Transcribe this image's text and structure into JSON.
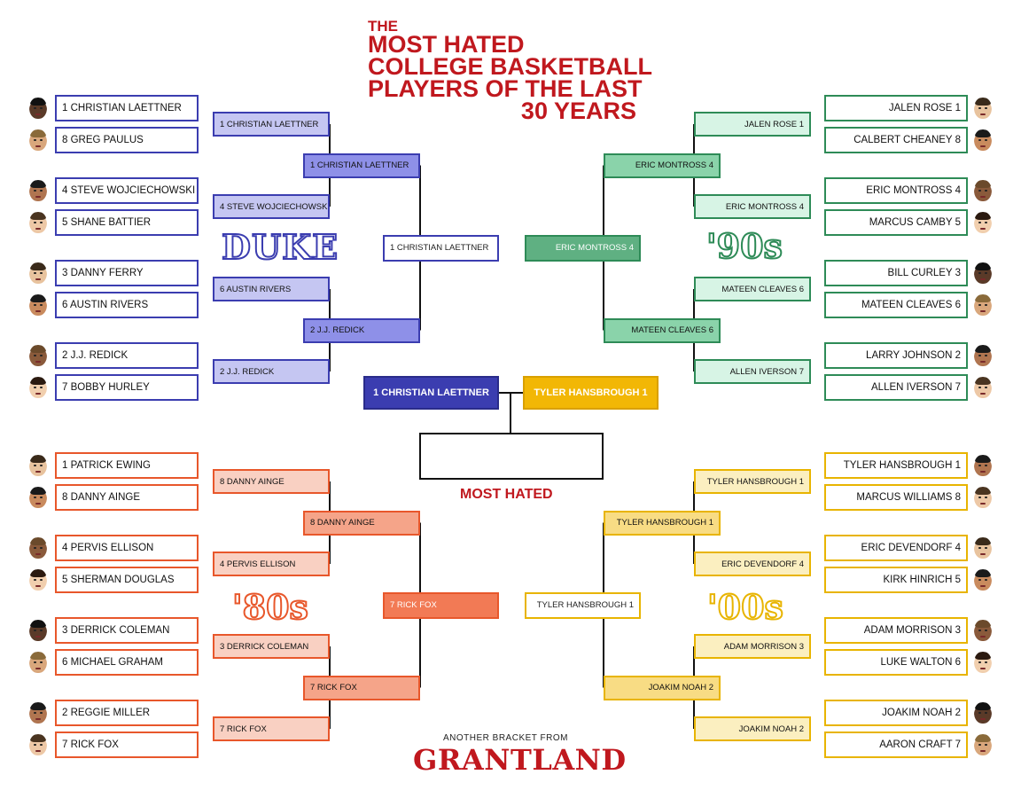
{
  "title": {
    "small": "THE",
    "lines": [
      "MOST HATED",
      "COLLEGE BASKETBALL",
      "PLAYERS OF THE LAST",
      "30 YEARS"
    ]
  },
  "colors": {
    "title_red": "#c0181e",
    "duke": "#3b3db0",
    "nineties": "#2e8b57",
    "eighties": "#e8572b",
    "aughts": "#e8b400"
  },
  "regions": {
    "duke": "DUKE",
    "nineties": "'90s",
    "eighties": "'80s",
    "aughts": "'00s"
  },
  "bracket": {
    "duke": {
      "round1": [
        {
          "label": "1 CHRISTIAN LAETTNER",
          "icon": "player-face-icon"
        },
        {
          "label": "8 GREG PAULUS",
          "icon": "player-face-icon"
        },
        {
          "label": "4 STEVE WOJCIECHOWSKI",
          "icon": "player-face-icon"
        },
        {
          "label": "5 SHANE BATTIER",
          "icon": "player-face-icon"
        },
        {
          "label": "3 DANNY FERRY",
          "icon": "player-face-icon"
        },
        {
          "label": "6 AUSTIN RIVERS",
          "icon": "player-face-icon"
        },
        {
          "label": "2 J.J. REDICK",
          "icon": "player-face-icon"
        },
        {
          "label": "7 BOBBY HURLEY",
          "icon": "player-face-icon"
        }
      ],
      "round2": [
        "1 CHRISTIAN LAETTNER",
        "4 STEVE WOJCIECHOWSKI",
        "6 AUSTIN RIVERS",
        "2 J.J. REDICK"
      ],
      "round3": [
        "1 CHRISTIAN LAETTNER",
        "2 J.J. REDICK"
      ],
      "winner": "1 CHRISTIAN LAETTNER"
    },
    "nineties": {
      "round1": [
        {
          "label": "JALEN ROSE 1",
          "icon": "player-face-icon"
        },
        {
          "label": "CALBERT CHEANEY 8",
          "icon": "player-face-icon"
        },
        {
          "label": "ERIC MONTROSS 4",
          "icon": "player-face-icon"
        },
        {
          "label": "MARCUS CAMBY 5",
          "icon": "player-face-icon"
        },
        {
          "label": "BILL CURLEY 3",
          "icon": "player-face-icon"
        },
        {
          "label": "MATEEN CLEAVES 6",
          "icon": "player-face-icon"
        },
        {
          "label": "LARRY JOHNSON 2",
          "icon": "player-face-icon"
        },
        {
          "label": "ALLEN IVERSON 7",
          "icon": "player-face-icon"
        }
      ],
      "round2": [
        "JALEN ROSE 1",
        "ERIC MONTROSS 4",
        "MATEEN CLEAVES 6",
        "ALLEN IVERSON 7"
      ],
      "round3": [
        "ERIC MONTROSS 4",
        "MATEEN CLEAVES 6"
      ],
      "winner": "ERIC MONTROSS 4"
    },
    "eighties": {
      "round1": [
        {
          "label": "1 PATRICK EWING",
          "icon": "player-face-icon"
        },
        {
          "label": "8 DANNY AINGE",
          "icon": "player-face-icon"
        },
        {
          "label": "4 PERVIS ELLISON",
          "icon": "player-face-icon"
        },
        {
          "label": "5 SHERMAN DOUGLAS",
          "icon": "player-face-icon"
        },
        {
          "label": "3 DERRICK COLEMAN",
          "icon": "player-face-icon"
        },
        {
          "label": "6 MICHAEL GRAHAM",
          "icon": "player-face-icon"
        },
        {
          "label": "2 REGGIE MILLER",
          "icon": "player-face-icon"
        },
        {
          "label": "7 RICK FOX",
          "icon": "player-face-icon"
        }
      ],
      "round2": [
        "8 DANNY AINGE",
        "4 PERVIS ELLISON",
        "3 DERRICK COLEMAN",
        "7 RICK FOX"
      ],
      "round3": [
        "8 DANNY AINGE",
        "7 RICK FOX"
      ],
      "winner": "7 RICK FOX"
    },
    "aughts": {
      "round1": [
        {
          "label": "TYLER HANSBROUGH 1",
          "icon": "player-face-icon"
        },
        {
          "label": "MARCUS WILLIAMS 8",
          "icon": "player-face-icon"
        },
        {
          "label": "ERIC DEVENDORF 4",
          "icon": "player-face-icon"
        },
        {
          "label": "KIRK HINRICH 5",
          "icon": "player-face-icon"
        },
        {
          "label": "ADAM MORRISON 3",
          "icon": "player-face-icon"
        },
        {
          "label": "LUKE WALTON 6",
          "icon": "player-face-icon"
        },
        {
          "label": "JOAKIM NOAH 2",
          "icon": "player-face-icon"
        },
        {
          "label": "AARON CRAFT 7",
          "icon": "player-face-icon"
        }
      ],
      "round2": [
        "TYLER HANSBROUGH 1",
        "ERIC DEVENDORF 4",
        "ADAM MORRISON 3",
        "JOAKIM NOAH 2"
      ],
      "round3": [
        "TYLER HANSBROUGH 1",
        "JOAKIM NOAH 2"
      ],
      "winner": "TYLER HANSBROUGH 1"
    }
  },
  "final": {
    "left": "1 CHRISTIAN LAETTNER",
    "right": "TYLER HANSBROUGH 1",
    "champion": "",
    "label": "MOST HATED"
  },
  "footer": {
    "small": "ANOTHER BRACKET FROM",
    "brand": "GRANTLAND"
  }
}
